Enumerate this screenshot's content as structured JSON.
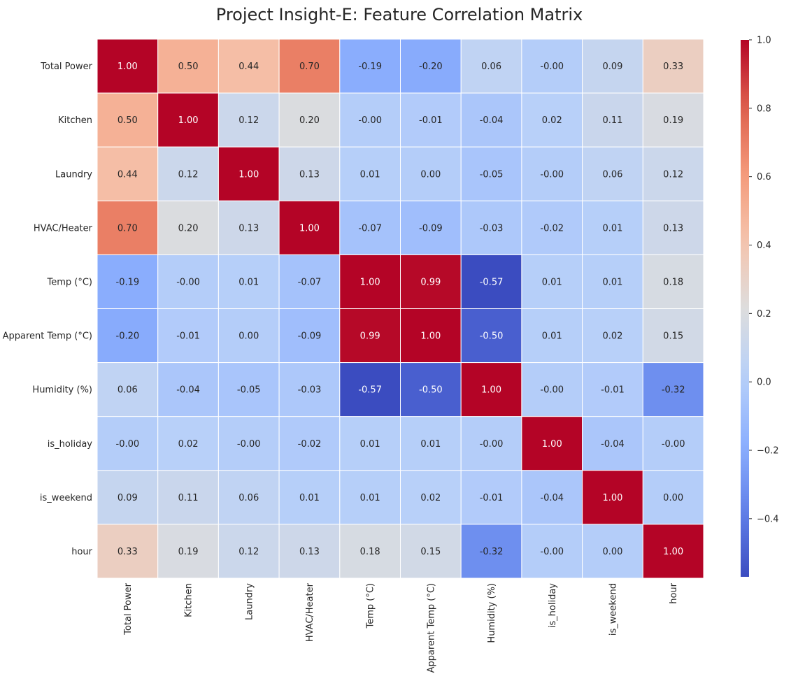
{
  "chart_data": {
    "type": "heatmap",
    "title": "Project Insight-E: Feature Correlation Matrix",
    "labels": [
      "Total Power",
      "Kitchen",
      "Laundry",
      "HVAC/Heater",
      "Temp (°C)",
      "Apparent Temp (°C)",
      "Humidity (%)",
      "is_holiday",
      "is_weekend",
      "hour"
    ],
    "values": [
      [
        1.0,
        0.5,
        0.44,
        0.7,
        -0.19,
        -0.2,
        0.06,
        -0.0,
        0.09,
        0.33
      ],
      [
        0.5,
        1.0,
        0.12,
        0.2,
        -0.0,
        -0.01,
        -0.04,
        0.02,
        0.11,
        0.19
      ],
      [
        0.44,
        0.12,
        1.0,
        0.13,
        0.01,
        0.0,
        -0.05,
        -0.0,
        0.06,
        0.12
      ],
      [
        0.7,
        0.2,
        0.13,
        1.0,
        -0.07,
        -0.09,
        -0.03,
        -0.02,
        0.01,
        0.13
      ],
      [
        -0.19,
        -0.0,
        0.01,
        -0.07,
        1.0,
        0.99,
        -0.57,
        0.01,
        0.01,
        0.18
      ],
      [
        -0.2,
        -0.01,
        0.0,
        -0.09,
        0.99,
        1.0,
        -0.5,
        0.01,
        0.02,
        0.15
      ],
      [
        0.06,
        -0.04,
        -0.05,
        -0.03,
        -0.57,
        -0.5,
        1.0,
        -0.0,
        -0.01,
        -0.32
      ],
      [
        -0.0,
        0.02,
        -0.0,
        -0.02,
        0.01,
        0.01,
        -0.0,
        1.0,
        -0.04,
        -0.0
      ],
      [
        0.09,
        0.11,
        0.06,
        0.01,
        0.01,
        0.02,
        -0.01,
        -0.04,
        1.0,
        0.0
      ],
      [
        0.33,
        0.19,
        0.12,
        0.13,
        0.18,
        0.15,
        -0.32,
        -0.0,
        0.0,
        1.0
      ]
    ],
    "value_format": "0.00",
    "colormap": "coolwarm",
    "vmin": -0.57,
    "vmax": 1.0,
    "colorbar_ticks": [
      1.0,
      0.8,
      0.6,
      0.4,
      0.2,
      0.0,
      -0.2,
      -0.4
    ],
    "colorbar_tick_labels": [
      "1.0",
      "0.8",
      "0.6",
      "0.4",
      "0.2",
      "0.0",
      "−0.2",
      "−0.4"
    ],
    "cell_border_color": "#ffffff",
    "annotation_colors": {
      "light": "#ffffff",
      "dark": "#262626"
    }
  }
}
